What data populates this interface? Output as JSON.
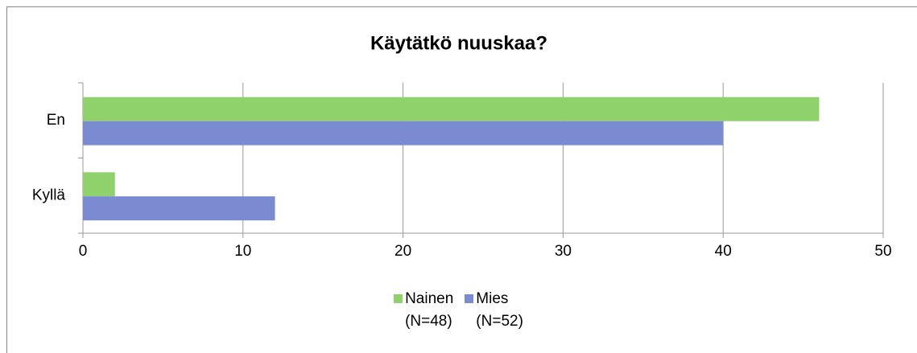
{
  "chart_data": {
    "type": "hbar",
    "title": "Käytätkö nuuskaa?",
    "categories": [
      "En",
      "Kyllä"
    ],
    "series": [
      {
        "name": "Nainen\n(N=48)",
        "color": "#8fd16b",
        "values": [
          46,
          2
        ]
      },
      {
        "name": "Mies\n(N=52)",
        "color": "#7a8bd2",
        "values": [
          40,
          12
        ]
      }
    ],
    "xlim": [
      0,
      50
    ],
    "xticks": [
      0,
      10,
      20,
      30,
      40,
      50
    ],
    "grid": true,
    "legend": "bottom"
  }
}
